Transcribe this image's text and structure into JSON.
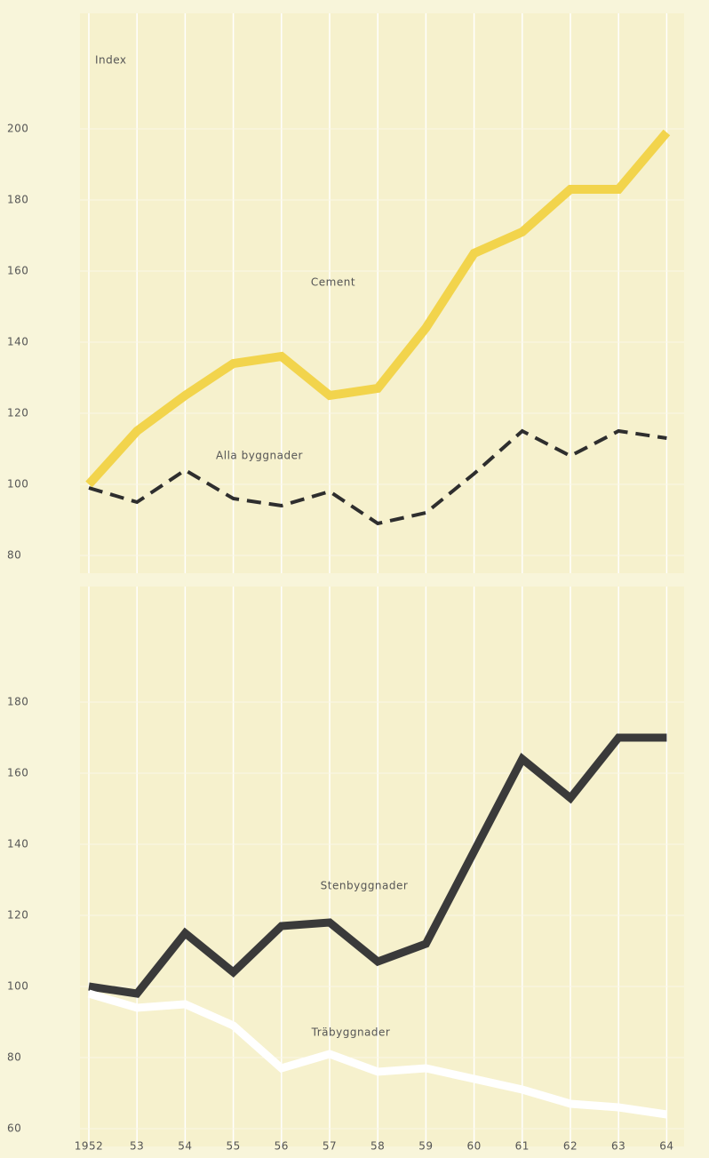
{
  "chart_data": [
    {
      "type": "line",
      "ylabel": "Index",
      "ylim": [
        80,
        200
      ],
      "yticks": [
        80,
        100,
        120,
        140,
        160,
        180,
        200
      ],
      "grid": true,
      "series": [
        {
          "name": "Cement",
          "color": "#f2d44c",
          "style": "solid",
          "values": [
            100,
            115,
            125,
            134,
            136,
            125,
            127,
            144,
            165,
            171,
            183,
            183,
            199
          ]
        },
        {
          "name": "Alla byggnader",
          "color": "#2e2e2e",
          "style": "dashed",
          "values": [
            99,
            95,
            104,
            96,
            94,
            98,
            89,
            92,
            103,
            115,
            108,
            115,
            113
          ]
        }
      ]
    },
    {
      "type": "line",
      "categories": [
        "1952",
        "53",
        "54",
        "55",
        "56",
        "57",
        "58",
        "59",
        "60",
        "61",
        "62",
        "63",
        "64"
      ],
      "ylim": [
        60,
        180
      ],
      "yticks": [
        60,
        80,
        100,
        120,
        140,
        160,
        180
      ],
      "grid": true,
      "series": [
        {
          "name": "Stenbyggnader",
          "color": "#3a3a3a",
          "style": "solid",
          "values": [
            100,
            98,
            115,
            104,
            117,
            118,
            107,
            112,
            138,
            164,
            153,
            170,
            170
          ]
        },
        {
          "name": "Träbyggnader",
          "color": "#ffffff",
          "style": "solid",
          "values": [
            98,
            94,
            95,
            89,
            77,
            81,
            76,
            77,
            74,
            71,
            67,
            66,
            64
          ]
        }
      ]
    }
  ]
}
